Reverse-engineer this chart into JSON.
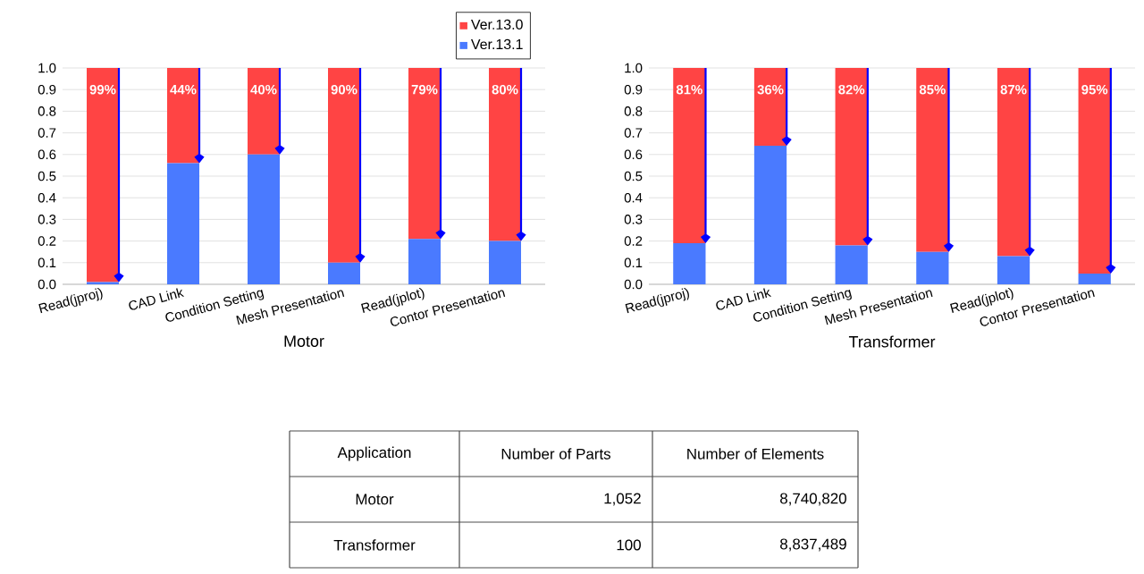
{
  "chart_data": [
    {
      "type": "bar",
      "stacked": true,
      "xlabel": "Motor",
      "legend": "top right",
      "grid": "y",
      "categories": [
        "Read(jproj)",
        "CAD Link",
        "Condition Setting",
        "Mesh Presentation",
        "Read(jplot)",
        "Contor Presentation"
      ],
      "ylim": [
        0,
        1
      ],
      "yticks": [
        {
          "value": 0,
          "label": "0.0"
        },
        {
          "value": 0.1,
          "label": "0.1"
        },
        {
          "value": 0.2,
          "label": "0.2"
        },
        {
          "value": 0.3,
          "label": "0.3"
        },
        {
          "value": 0.4,
          "label": "0.4"
        },
        {
          "value": 0.5,
          "label": "0.5"
        },
        {
          "value": 0.6,
          "label": "0.6"
        },
        {
          "value": 0.7,
          "label": "0.7"
        },
        {
          "value": 0.8,
          "label": "0.8"
        },
        {
          "value": 0.9,
          "label": "0.9"
        },
        {
          "value": 1,
          "label": "1.0"
        }
      ],
      "series": [
        {
          "name": "Ver.13.1",
          "color": "#4a7aff",
          "values": [
            0.01,
            0.56,
            0.6,
            0.1,
            0.21,
            0.2
          ]
        },
        {
          "name": "Ver.13.0",
          "color": "#ff4444",
          "values": [
            0.99,
            0.44,
            0.4,
            0.9,
            0.79,
            0.8
          ],
          "value_labels": [
            "99%",
            "44%",
            "40%",
            "90%",
            "79%",
            "80%"
          ]
        }
      ]
    },
    {
      "type": "bar",
      "stacked": true,
      "xlabel": "Transformer",
      "grid": "y",
      "categories": [
        "Read(jproj)",
        "CAD Link",
        "Condition Setting",
        "Mesh Presentation",
        "Read(jplot)",
        "Contor Presentation"
      ],
      "ylim": [
        0,
        1
      ],
      "yticks": [
        {
          "value": 0,
          "label": "0.0"
        },
        {
          "value": 0.1,
          "label": "0.1"
        },
        {
          "value": 0.2,
          "label": "0.2"
        },
        {
          "value": 0.3,
          "label": "0.3"
        },
        {
          "value": 0.4,
          "label": "0.4"
        },
        {
          "value": 0.5,
          "label": "0.5"
        },
        {
          "value": 0.6,
          "label": "0.6"
        },
        {
          "value": 0.7,
          "label": "0.7"
        },
        {
          "value": 0.8,
          "label": "0.8"
        },
        {
          "value": 0.9,
          "label": "0.9"
        },
        {
          "value": 1,
          "label": "1.0"
        }
      ],
      "series": [
        {
          "color": "#4a7aff",
          "values": [
            0.19,
            0.64,
            0.18,
            0.15,
            0.13,
            0.05
          ]
        },
        {
          "color": "#ff4444",
          "values": [
            0.81,
            0.36,
            0.82,
            0.85,
            0.87,
            0.95
          ],
          "value_labels": [
            "81%",
            "36%",
            "82%",
            "85%",
            "87%",
            "95%"
          ]
        }
      ]
    },
    {
      "type": "other",
      "annotations": [
        "Application",
        "Number of Parts",
        "Number of Elements",
        "Motor",
        "1,052",
        "8,740,820",
        "Transformer",
        "100",
        "8,837,489"
      ]
    }
  ]
}
